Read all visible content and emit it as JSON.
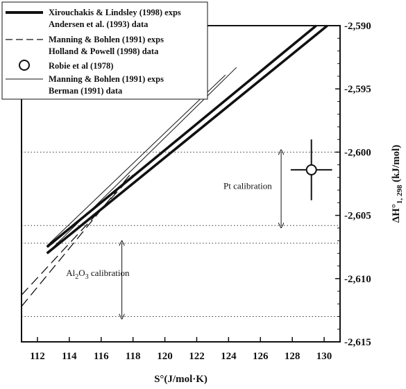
{
  "chart_data": {
    "type": "line",
    "title": "",
    "xlabel": "S°(J/mol·K)",
    "ylabel_main": "ΔH°",
    "ylabel_sub": "1, 298",
    "ylabel_unit": " (kJ/mol)",
    "xlim": [
      111,
      131
    ],
    "ylim": [
      -2615,
      -2590
    ],
    "x_ticks": [
      {
        "value": 112,
        "label": "112"
      },
      {
        "value": 114,
        "label": "114"
      },
      {
        "value": 116,
        "label": "116"
      },
      {
        "value": 118,
        "label": "118"
      },
      {
        "value": 120,
        "label": "120"
      },
      {
        "value": 122,
        "label": "122"
      },
      {
        "value": 124,
        "label": "124"
      },
      {
        "value": 126,
        "label": "126"
      },
      {
        "value": 128,
        "label": "128"
      },
      {
        "value": 130,
        "label": "130"
      }
    ],
    "y_ticks": [
      {
        "value": -2590,
        "label": "-2,590"
      },
      {
        "value": -2595,
        "label": "-2,595"
      },
      {
        "value": -2600,
        "label": "-2,600"
      },
      {
        "value": -2605,
        "label": "-2,605"
      },
      {
        "value": -2610,
        "label": "-2,610"
      },
      {
        "value": -2615,
        "label": "-2,615"
      }
    ],
    "legend": [
      {
        "line1": "Xirouchakis & Lindsley (1998) exps",
        "line2": "Andersen et al. (1993) data",
        "style": "thick"
      },
      {
        "line1": "Manning & Bohlen (1991) exps",
        "line2": "Holland & Powell (1998) data",
        "style": "dashed"
      },
      {
        "line1": "Robie et al (1978)",
        "line2": "",
        "style": "circle"
      },
      {
        "line1": "Manning & Bohlen (1991) exps",
        "line2": "Berman (1991) data",
        "style": "thin"
      }
    ],
    "series": [
      {
        "style": "thick",
        "points": [
          [
            112.6,
            -2607.5
          ],
          [
            129.5,
            -2590
          ]
        ]
      },
      {
        "style": "thick",
        "points": [
          [
            112.6,
            -2608.0
          ],
          [
            130.2,
            -2590
          ]
        ]
      },
      {
        "style": "dashed",
        "points": [
          [
            111.0,
            -2611.3
          ],
          [
            118.0,
            -2601.8
          ]
        ]
      },
      {
        "style": "dashed",
        "points": [
          [
            111.0,
            -2612.2
          ],
          [
            117.8,
            -2601.8
          ]
        ]
      },
      {
        "style": "thin",
        "points": [
          [
            112.6,
            -2608.0
          ],
          [
            124.5,
            -2593.3
          ]
        ]
      },
      {
        "style": "thin",
        "points": [
          [
            112.6,
            -2607.4
          ],
          [
            123.8,
            -2593.9
          ]
        ]
      }
    ],
    "reference_point": {
      "x": 129.2,
      "y": -2601.4,
      "x_err": 1.3,
      "y_err": 2.4
    },
    "dotted_levels": [
      -2600,
      -2605.8,
      -2607.2,
      -2613
    ],
    "annotations": [
      {
        "text": "Pt calibration",
        "x": 125.2,
        "y": -2602.9
      },
      {
        "text_main": "Al",
        "sub1": "2",
        "mid": "O",
        "sub2": "3",
        "rest": " calibration",
        "x": 113.8,
        "y": -2609.8
      }
    ],
    "range_arrows": [
      {
        "x": 127.3,
        "y_from": -2600,
        "y_to": -2605.8
      },
      {
        "x": 117.3,
        "y_from": -2607.2,
        "y_to": -2613
      }
    ],
    "grid": false
  }
}
